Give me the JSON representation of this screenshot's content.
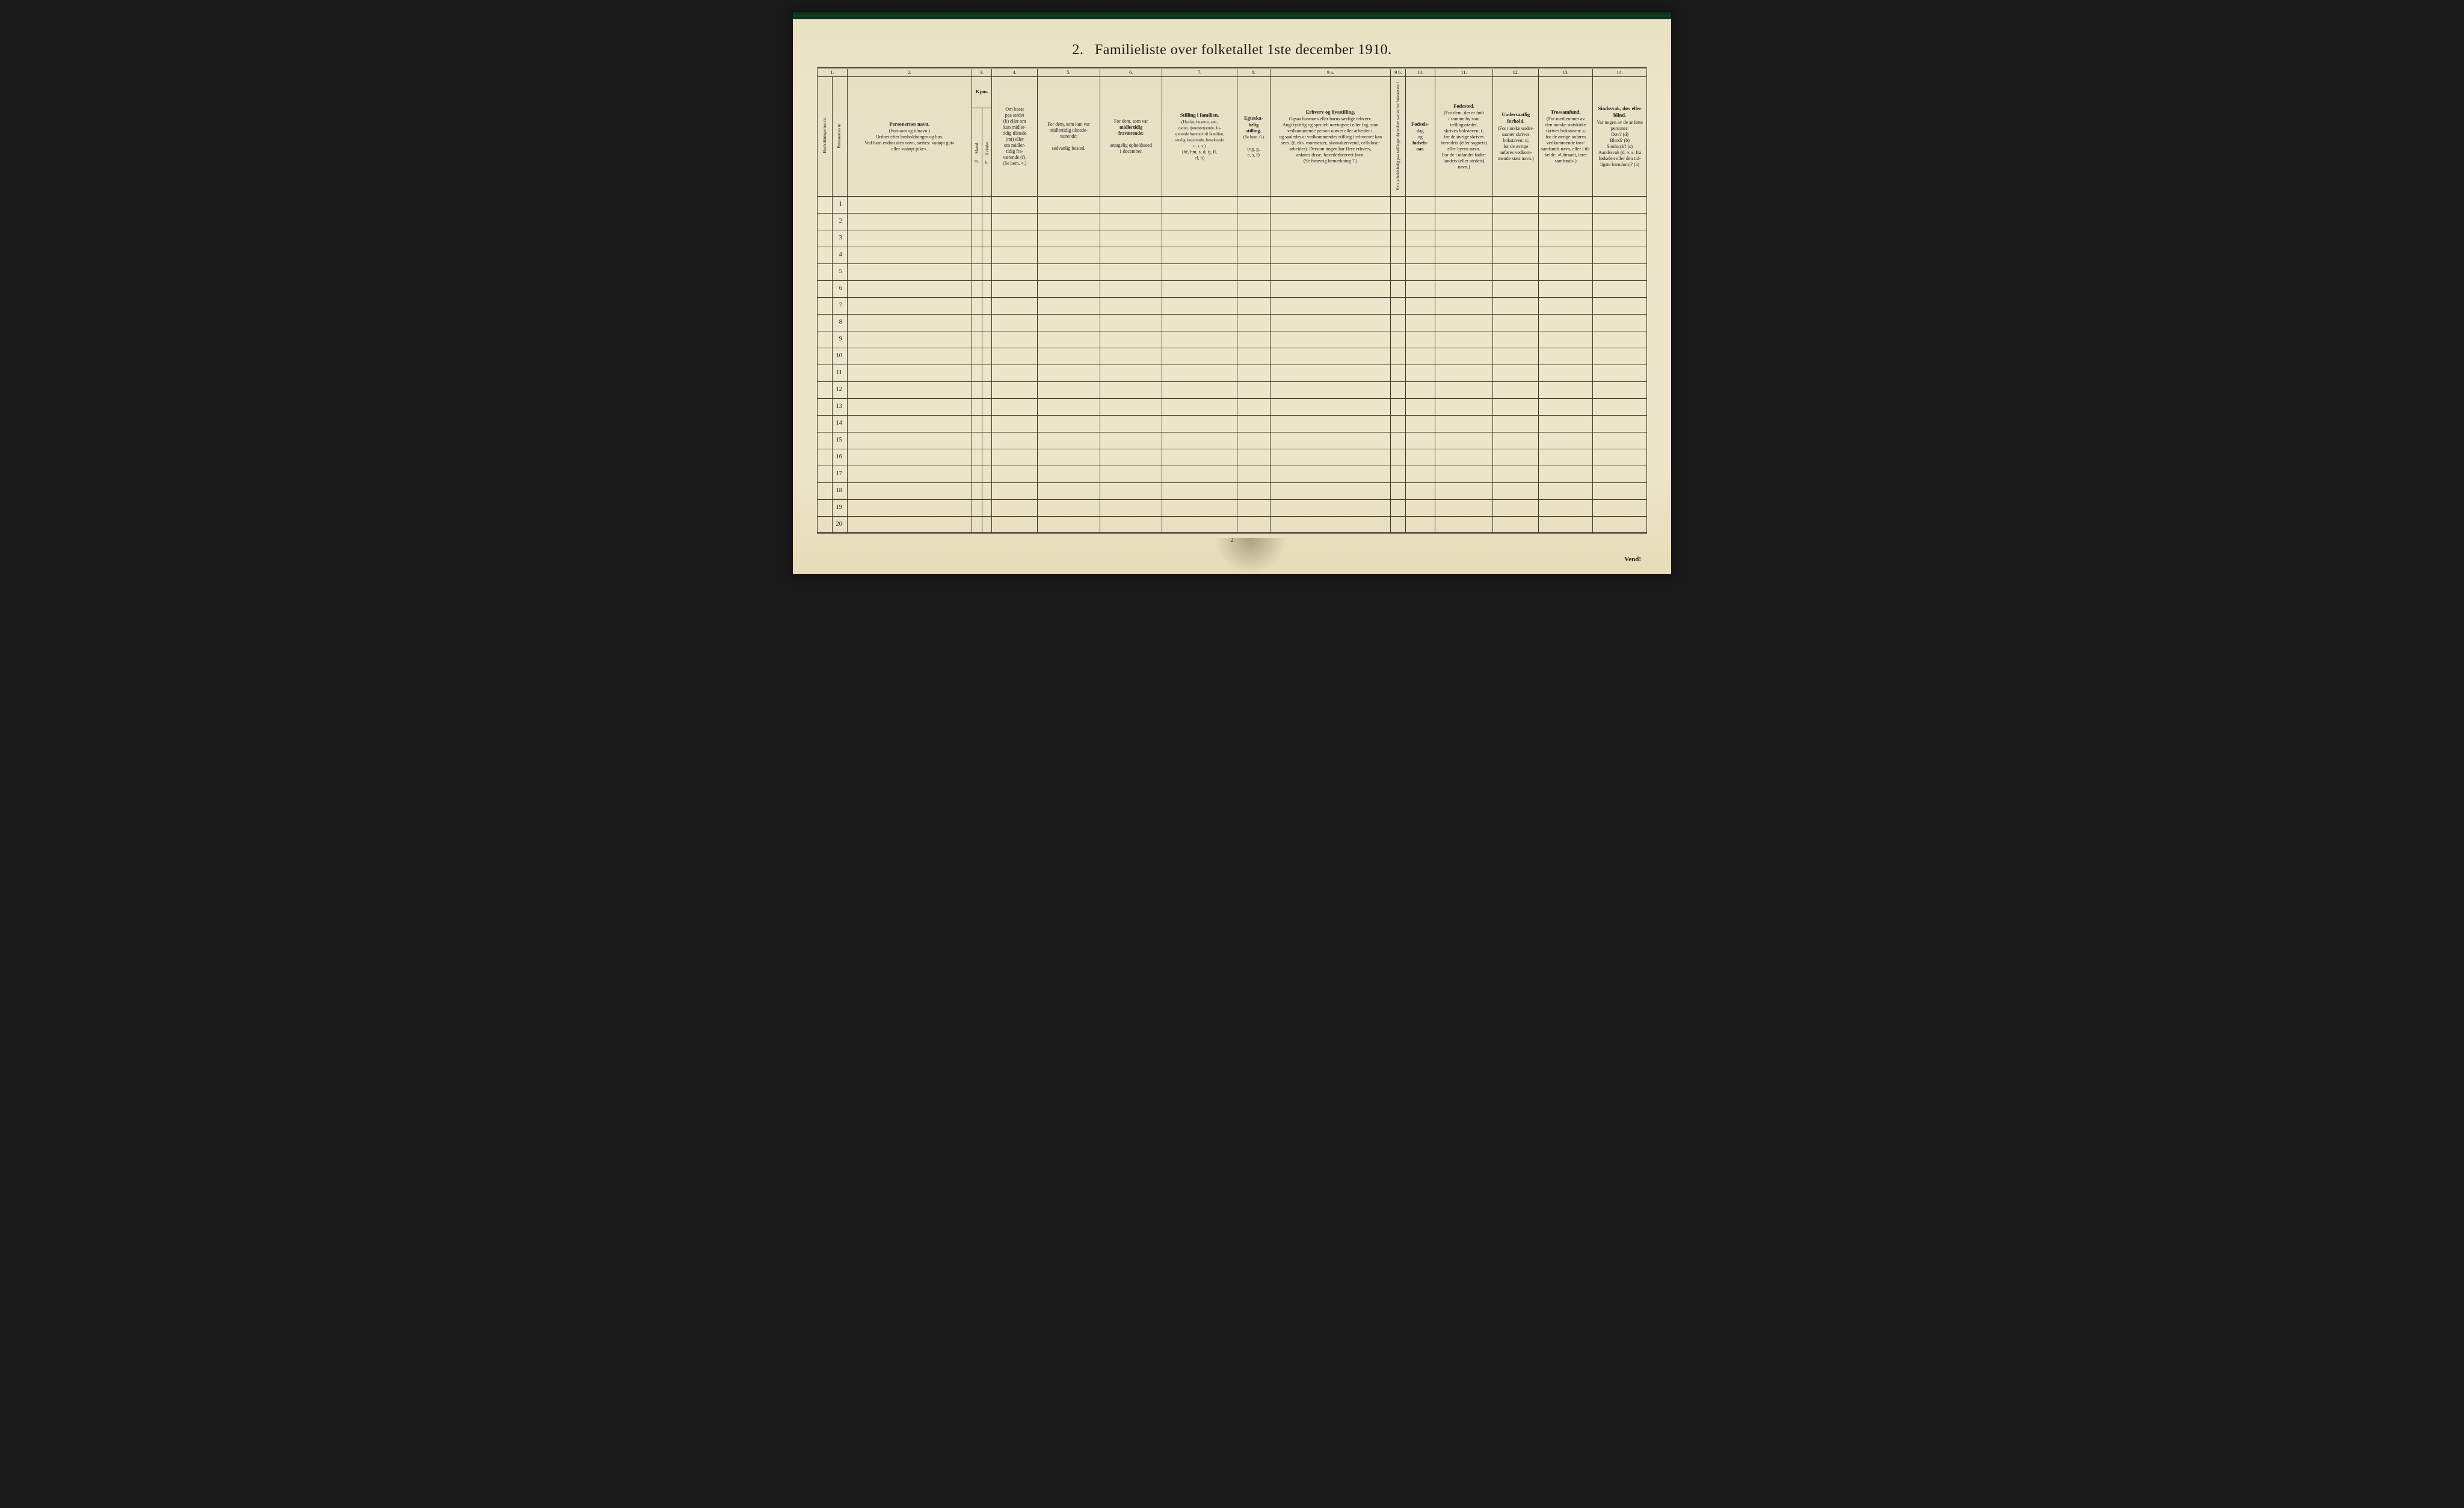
{
  "title_number": "2.",
  "title_text": "Familieliste over folketallet 1ste december 1910.",
  "footer_page_num": "2",
  "vend_text": "Vend!",
  "row_count": 20,
  "colors": {
    "paper": "#ebe4c8",
    "ink": "#1a1a1a",
    "rule": "#3a3a2a",
    "dark_border": "#0a2818"
  },
  "columns": [
    {
      "num": "1.",
      "header_vert1": "Husholdningernes nr.",
      "header_vert2": "Personernes nr."
    },
    {
      "num": "2.",
      "bold": "Personernes navn.",
      "lines": [
        "(Fornavn og tilnavn.)",
        "Ordnet efter husholdninger og hus.",
        "Ved barn endnu uten navn, sættes: «udøpt gut»",
        "eller «udøpt pike»."
      ]
    },
    {
      "num": "3.",
      "bold": "Kjøn.",
      "sub_vert1": "Mænd.",
      "sub_vert2": "Kvinder.",
      "foot": "m.  k."
    },
    {
      "num": "4.",
      "lines": [
        "Om bosat",
        "paa stedet",
        "(b) eller om",
        "kun midler-",
        "tidig tilstede",
        "(mt) eller",
        "om midler-",
        "tidig fra-",
        "værende (f).",
        "(Se bem. 4.)"
      ]
    },
    {
      "num": "5.",
      "lines": [
        "For dem, som kun var",
        "midlertidig tilstede-",
        "værende:",
        "",
        "sedvanlig bosted."
      ]
    },
    {
      "num": "6.",
      "lines": [
        "For dem, som var",
        "midlertidig",
        "fraværende:",
        "",
        "antagelig opholdssted",
        "1 december."
      ]
    },
    {
      "num": "7.",
      "bold": "Stilling i familien.",
      "lines": [
        "(Husfar, husmor, søn,",
        "datter, tjenestetyende, lo-",
        "sjerende hørende til familien,",
        "enslig losjerende, besøkende",
        "o. s. v.)",
        "(hf, hm, s, d, tj, fl,",
        "el, b)"
      ]
    },
    {
      "num": "8.",
      "bold": "Egteska-",
      "lines": [
        "belig",
        "stilling.",
        "(Se bem. 6.)",
        "",
        "(ug, g,",
        "e, s, f)"
      ]
    },
    {
      "num": "9 a.",
      "bold": "Erhverv og livsstilling.",
      "lines": [
        "Ogsaa husmors eller barns særlige erhverv.",
        "Angi tydelig og specielt næringsvei eller fag, som",
        "vedkommende person utøver eller arbeider i,",
        "og saaledes at vedkommendes stilling i erhvervet kan",
        "sees. (f. eks. murmester, skomakersvend, cellulose-",
        "arbeider). Dersom nogen har flere erhverv,",
        "anføres disse, hovederhvervet først.",
        "(Se forøvrig bemerkning 7.)"
      ]
    },
    {
      "num": "9 b.",
      "vert": "Hvis arbeidsledig paa tællingstidspunktet sættes her bokstaven: l."
    },
    {
      "num": "10.",
      "bold": "Fødsels-",
      "lines": [
        "dag",
        "og",
        "fødsels-",
        "aar."
      ]
    },
    {
      "num": "11.",
      "bold": "Fødested.",
      "lines": [
        "(For dem, der er født",
        "i samme by som",
        "tællingsstedet,",
        "skrives bokstaven: t;",
        "for de øvrige skrives",
        "herredets (eller sognets)",
        "eller byens navn.",
        "For de i utlandet fødte:",
        "landets (eller stedets)",
        "navn.)"
      ]
    },
    {
      "num": "12.",
      "bold": "Undersaatlig forhold.",
      "lines": [
        "(For norske under-",
        "saatter skrives",
        "bokstaven: n;",
        "for de øvrige",
        "anføres vedkom-",
        "mende stats navn.)"
      ]
    },
    {
      "num": "13.",
      "bold": "Trossamfund.",
      "lines": [
        "(For medlemmer av",
        "den norske statskirke",
        "skrives bokstaven: s;",
        "for de øvrige anføres",
        "vedkommende tros-",
        "samfunds navn, eller i til-",
        "fælde: «Uttraadt, intet",
        "samfund».)"
      ]
    },
    {
      "num": "14.",
      "bold": "Sindssvak, døv eller blind.",
      "lines": [
        "Var nogen av de anførte",
        "personer:",
        "Døv?        (d)",
        "Blind?      (b)",
        "Sindssyk?  (s)",
        "Aandssvak (d. v. s. fra",
        "fødselen eller den tid-",
        "ligste barndom)?  (a)"
      ]
    }
  ]
}
